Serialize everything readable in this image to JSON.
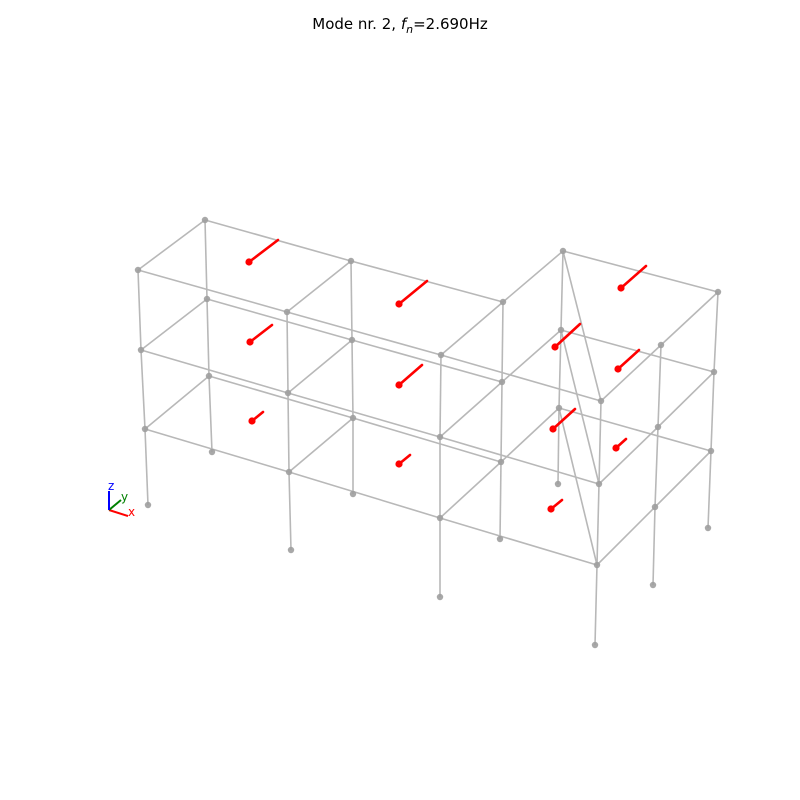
{
  "title": {
    "prefix": "Mode nr. 2, ",
    "f_main": "f",
    "f_sub": "n",
    "suffix": "=2.690Hz"
  },
  "triad": {
    "x_label": "x",
    "y_label": "y",
    "z_label": "z",
    "x_color": "#ff0000",
    "y_color": "#008000",
    "z_color": "#0000ff"
  },
  "colors": {
    "structure": "#b8b8b8",
    "nodes": "#9e9e9e",
    "mode_shape": "#ff0000"
  }
}
